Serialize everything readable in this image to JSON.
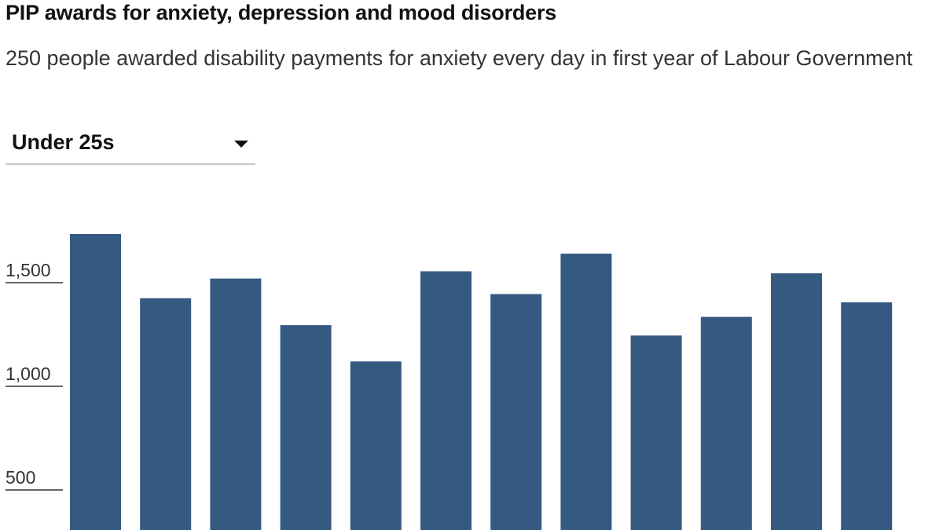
{
  "header": {
    "title": "PIP awards for anxiety, depression and mood disorders",
    "subtitle": "250 people awarded disability payments for anxiety every day in first year of Labour Government"
  },
  "filter": {
    "selected": "Under 25s",
    "icon": "caret-down-icon"
  },
  "chart_data": {
    "type": "bar",
    "values": [
      1735,
      1425,
      1520,
      1295,
      1120,
      1555,
      1445,
      1640,
      1245,
      1335,
      1545,
      1405
    ],
    "ylim": [
      0,
      1800
    ],
    "yticks": [
      500,
      1000,
      1500
    ],
    "ytick_labels": [
      "500",
      "1,000",
      "1,500"
    ],
    "color": "#355a82",
    "grid": false
  }
}
